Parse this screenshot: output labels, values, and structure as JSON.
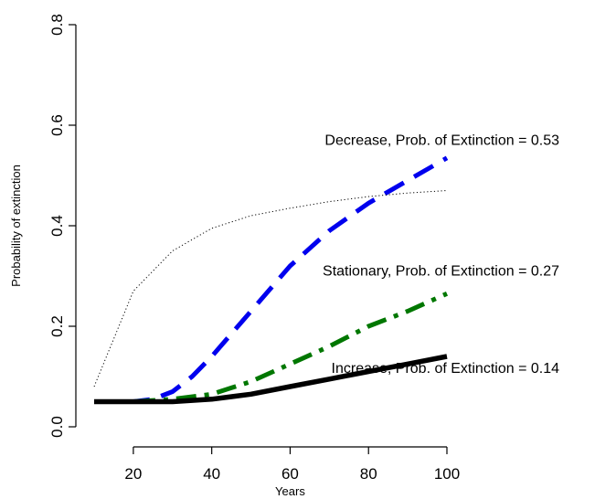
{
  "chart_data": {
    "type": "line",
    "title": "",
    "xlabel": "Years",
    "ylabel": "Probability of extinction",
    "xlim": [
      10,
      100
    ],
    "ylim": [
      0.0,
      0.8
    ],
    "x_ticks": [
      20,
      40,
      60,
      80,
      100
    ],
    "y_ticks": [
      0.0,
      0.2,
      0.4,
      0.6,
      0.8
    ],
    "x_tick_labels": [
      "20",
      "40",
      "60",
      "80",
      "100"
    ],
    "y_tick_labels": [
      "0.0",
      "0.2",
      "0.4",
      "0.6",
      "0.8"
    ],
    "grid": false,
    "legend": "none",
    "series": [
      {
        "key": "decrease",
        "style": "dashed",
        "color": "#0000ee",
        "points": [
          [
            10,
            0.05
          ],
          [
            20,
            0.05
          ],
          [
            25,
            0.055
          ],
          [
            30,
            0.07
          ],
          [
            35,
            0.1
          ],
          [
            40,
            0.14
          ],
          [
            50,
            0.23
          ],
          [
            60,
            0.32
          ],
          [
            70,
            0.39
          ],
          [
            80,
            0.445
          ],
          [
            90,
            0.49
          ],
          [
            100,
            0.535
          ]
        ]
      },
      {
        "key": "stationary",
        "style": "dashdot",
        "color": "#007700",
        "points": [
          [
            10,
            0.05
          ],
          [
            20,
            0.05
          ],
          [
            30,
            0.055
          ],
          [
            40,
            0.065
          ],
          [
            50,
            0.09
          ],
          [
            60,
            0.125
          ],
          [
            70,
            0.16
          ],
          [
            80,
            0.2
          ],
          [
            90,
            0.23
          ],
          [
            100,
            0.265
          ]
        ]
      },
      {
        "key": "increase",
        "style": "solid",
        "color": "#000000",
        "points": [
          [
            10,
            0.05
          ],
          [
            20,
            0.05
          ],
          [
            30,
            0.05
          ],
          [
            40,
            0.055
          ],
          [
            50,
            0.065
          ],
          [
            60,
            0.08
          ],
          [
            70,
            0.095
          ],
          [
            80,
            0.11
          ],
          [
            90,
            0.125
          ],
          [
            100,
            0.14
          ]
        ]
      },
      {
        "key": "reference",
        "style": "dotted",
        "color": "#000000",
        "points": [
          [
            10,
            0.08
          ],
          [
            20,
            0.27
          ],
          [
            30,
            0.35
          ],
          [
            40,
            0.395
          ],
          [
            50,
            0.42
          ],
          [
            60,
            0.435
          ],
          [
            70,
            0.448
          ],
          [
            80,
            0.458
          ],
          [
            90,
            0.465
          ],
          [
            100,
            0.47
          ]
        ]
      }
    ],
    "annotations": [
      {
        "text": "Decrease, Prob. of Extinction = 0.53",
        "x": 100,
        "y": 0.53
      },
      {
        "text": "Stationary, Prob. of Extinction = 0.27",
        "x": 100,
        "y": 0.27
      },
      {
        "text": "Increase, Prob. of Extinction = 0.14",
        "x": 100,
        "y": 0.14
      }
    ]
  }
}
